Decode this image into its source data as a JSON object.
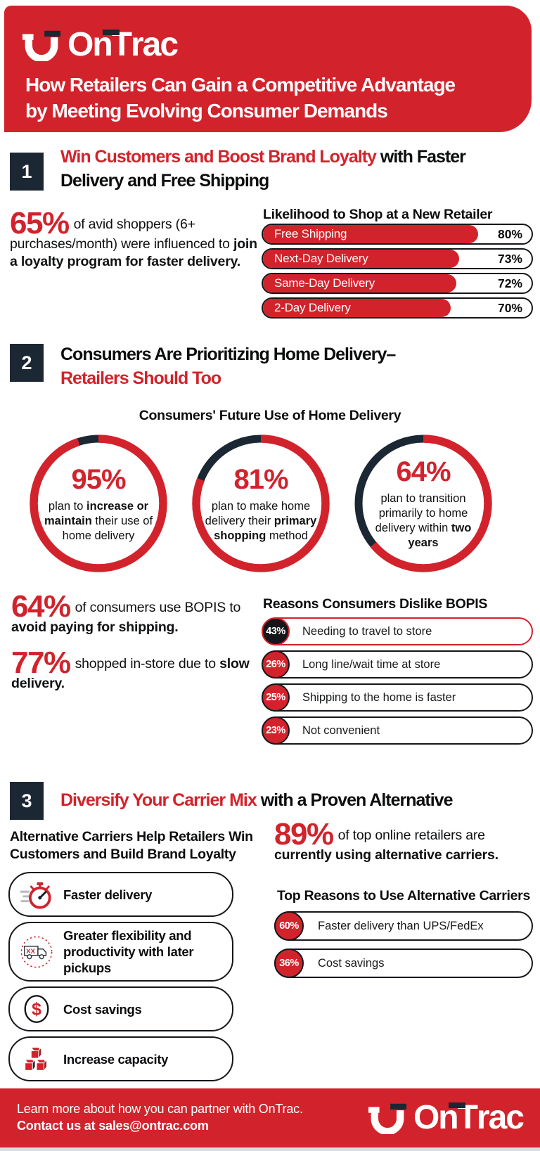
{
  "colors": {
    "red": "#D2232C",
    "dark_navy": "#1B2733",
    "page_bg": "#FFFFFF",
    "footer_strip": "#D8DBE0"
  },
  "brand": {
    "logo_part1": "On",
    "logo_part2": "T",
    "logo_part3": "rac"
  },
  "header": {
    "title_line1": "How Retailers Can Gain a Competitive Advantage",
    "title_line2": "by Meeting Evolving Consumer Demands"
  },
  "sections": {
    "s1": {
      "number": "1",
      "title_highlight": "Win Customers and Boost Brand Loyalty",
      "title_rest": " with Faster",
      "title_line2": "Delivery and Free Shipping",
      "stat": {
        "value": "65%",
        "segments": [
          [
            "of avid shoppers (6+ purchases/month) were influenced to ",
            false
          ],
          [
            "join a loyalty program for faster delivery.",
            true
          ]
        ]
      }
    },
    "s2": {
      "number": "2",
      "title_line1": "Consumers Are Prioritizing Home Delivery–",
      "title_line2": "Retailers Should Too",
      "stats": [
        {
          "value": "64%",
          "segments": [
            [
              "of consumers use BOPIS to ",
              false
            ],
            [
              "avoid paying for shipping.",
              true
            ]
          ]
        },
        {
          "value": "77%",
          "segments": [
            [
              "shopped in-store due to ",
              false
            ],
            [
              "slow delivery.",
              true
            ]
          ]
        }
      ]
    },
    "s3": {
      "number": "3",
      "title_highlight": "Diversify Your Carrier Mix",
      "title_rest": " with a Proven Alternative",
      "benefits_title": "Alternative Carriers Help Retailers Win Customers and Build Brand Loyalty",
      "benefits": [
        {
          "icon": "stopwatch-icon",
          "label": "Faster delivery"
        },
        {
          "icon": "delivery-truck-icon",
          "label": "Greater flexibility and productivity with later pickups"
        },
        {
          "icon": "dollar-coin-icon",
          "label": "Cost savings"
        },
        {
          "icon": "shipping-boxes-icon",
          "label": "Increase capacity"
        }
      ],
      "stat": {
        "value": "89%",
        "segments": [
          [
            "of top online retailers are ",
            false
          ],
          [
            "currently using alternative carriers.",
            true
          ]
        ]
      }
    }
  },
  "footer": {
    "line1": "Learn more about how you can partner with OnTrac.",
    "line2": "Contact us at sales@ontrac.com"
  },
  "chart_data": [
    {
      "type": "bar",
      "title": "Likelihood to Shop at a New Retailer",
      "categories": [
        "Free Shipping",
        "Next-Day Delivery",
        "Same-Day Delivery",
        "2-Day Delivery"
      ],
      "values": [
        80,
        73,
        72,
        70
      ],
      "unit": "%",
      "xlim": [
        0,
        100
      ],
      "bar_color": "#D2232C",
      "legend": "none",
      "grid": false
    },
    {
      "type": "pie",
      "subtype": "donut-trio",
      "title": "Consumers' Future Use of Home Delivery",
      "ring_colors": {
        "filled": "#D2232C",
        "remainder": "#1B2733"
      },
      "donuts": [
        {
          "value": 95,
          "display": "95%",
          "caption_segments": [
            [
              "plan to ",
              false
            ],
            [
              "increase or maintain",
              true
            ],
            [
              " their use of home delivery",
              false
            ]
          ]
        },
        {
          "value": 81,
          "display": "81%",
          "caption_segments": [
            [
              "plan to make home delivery their ",
              false
            ],
            [
              "primary shopping",
              true
            ],
            [
              " method",
              false
            ]
          ]
        },
        {
          "value": 64,
          "display": "64%",
          "caption_segments": [
            [
              "plan to transition primarily to home delivery within ",
              false
            ],
            [
              "two years",
              true
            ]
          ]
        }
      ]
    },
    {
      "type": "bar",
      "subtype": "badge-pill-list",
      "title": "Reasons Consumers Dislike BOPIS",
      "categories": [
        "Needing to travel to store",
        "Long line/wait time at store",
        "Shipping to the home is faster",
        "Not convenient"
      ],
      "values": [
        43,
        26,
        25,
        23
      ],
      "unit": "%",
      "highlight_index": 0
    },
    {
      "type": "bar",
      "subtype": "badge-pill-list",
      "title": "Top Reasons to Use Alternative Carriers",
      "categories": [
        "Faster delivery than UPS/FedEx",
        "Cost savings"
      ],
      "values": [
        60,
        36
      ],
      "unit": "%",
      "highlight_index": -1
    }
  ]
}
